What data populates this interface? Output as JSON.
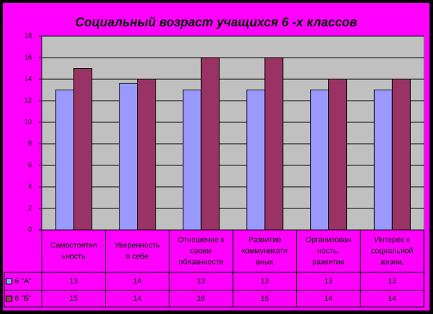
{
  "chart_data": {
    "type": "bar",
    "title": "Социальный возраст учащихся 6 -х классов",
    "categories": [
      "Самостоятел\nьность",
      "Уверенность\nв себе",
      "Отношение к\nсвоим\nобязанностя",
      "Развитие\nкоммуникати\nвных",
      "Организован\nность,\nразвитие",
      "Интерес к\nсоциальной\nжизни,"
    ],
    "series": [
      {
        "name": "6 \"А\"",
        "color": "#9999ff",
        "values": [
          13,
          13.6,
          13,
          13,
          13,
          13
        ],
        "value_labels": [
          "13",
          "14",
          "13",
          "13",
          "13",
          "13"
        ]
      },
      {
        "name": "6 \"Б\"",
        "color": "#993366",
        "values": [
          15,
          14,
          16,
          16,
          14,
          14
        ]
      }
    ],
    "ylim": [
      0,
      18
    ],
    "yticks": [
      0,
      2,
      4,
      6,
      8,
      10,
      12,
      14,
      16,
      18
    ],
    "grid": true
  }
}
